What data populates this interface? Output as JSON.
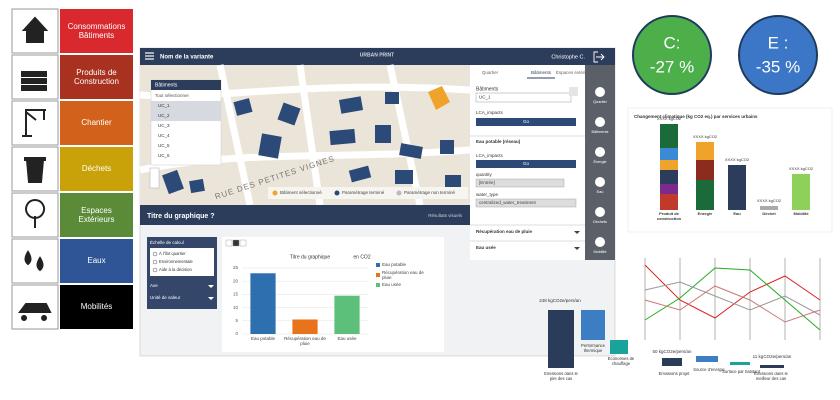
{
  "tiles": [
    {
      "label": "Consommations Bâtiments",
      "color": "#d9282e"
    },
    {
      "label": "Produits de Construction",
      "color": "#a8321f"
    },
    {
      "label": "Chantier",
      "color": "#d2621b"
    },
    {
      "label": "Déchets",
      "color": "#c9a20a"
    },
    {
      "label": "Espaces Extérieurs",
      "color": "#5b8b38"
    },
    {
      "label": "Eaux",
      "color": "#2f5597"
    },
    {
      "label": "Mobilités",
      "color": "#000000"
    }
  ],
  "kpis": [
    {
      "label": "C:",
      "value": "-27 %",
      "color": "#4caf4a"
    },
    {
      "label": "E :",
      "value": "-35 %",
      "color": "#3b77c6"
    }
  ],
  "app": {
    "variant": "Nom de la variante",
    "brand": "URBAN PRINT",
    "user": "Christophe C.",
    "buildings_panel": {
      "title": "Bâtiments",
      "select_all": "Tout sélectionner",
      "items": [
        "UC_1",
        "UC_2",
        "UC_3",
        "UC_4",
        "UC_5",
        "UC_6"
      ]
    },
    "street": "RUE DES PETITES VIGNES",
    "map_legend": [
      "Bâtiment sélectionné",
      "Paramétrage terminé",
      "Paramétrage non terminé"
    ],
    "tabs": [
      "Quartier",
      "Bâtiments",
      "Espaces extérieurs"
    ],
    "form": {
      "field": "Bâtiments",
      "selected": "UC_1",
      "impacts": "LCA_impacts",
      "go": "Go",
      "section": "Eau potable (réseau)",
      "quantity": "quantity",
      "quantity_value": "[Entrée]",
      "water_type": "water_type",
      "water_value": "centralized_water_treatment",
      "sections": [
        "Récupération eau de pluie",
        "Eau usée"
      ]
    },
    "sidebar": [
      "Quartier",
      "Bâtiments",
      "Énergie",
      "Eau",
      "Déchets",
      "Mobilité"
    ],
    "chart_header": "Titre du graphique ?",
    "results": "Résultats visuels",
    "filters": {
      "title": "Échelle de calcul",
      "options": [
        "À l'îlot quartier",
        "Environnementale",
        "Aide à la décision"
      ],
      "rows": [
        "Axe",
        "Unité de valeur"
      ]
    }
  },
  "chart_data": {
    "type": "bar",
    "title": "Titre du graphique",
    "subtitle": "en CO2",
    "categories": [
      "Eau potable",
      "Récupération eau de pluie",
      "Eau usée"
    ],
    "values": [
      23,
      5.5,
      14.5
    ],
    "colors": [
      "#2e6fb0",
      "#e8731c",
      "#5cbf7a"
    ],
    "ylim": [
      0,
      25
    ],
    "yticks": [
      0,
      5,
      10,
      15,
      20,
      25
    ],
    "grid": true
  },
  "stacked": {
    "title": "Changement climatique (kg CO2 eq.) par services urbains",
    "bars": [
      {
        "label": "XXXX kgCO2",
        "name": "Produit de construction"
      },
      {
        "label": "XXXX kgCO2",
        "name": "Energie"
      },
      {
        "label": "XXXX kgCO2",
        "name": "Eau"
      },
      {
        "label": "XXXX kgCO2",
        "name": "Déchet"
      },
      {
        "label": "XXXX kgCO2",
        "name": "Mobilité"
      }
    ]
  },
  "waterfall": {
    "top": "248 kgCO2e/pers/an",
    "mid": "50 kgCO2e/pers/an",
    "low": "11 kgCO2e/pers/an",
    "labels": [
      "Emissions dans le pire des cas",
      "Performance thermique",
      "Economies de chauffage",
      "Emissions projet",
      "Source d'énergie",
      "Surface par habitant",
      "Emissions dans le meilleur des cas"
    ]
  }
}
